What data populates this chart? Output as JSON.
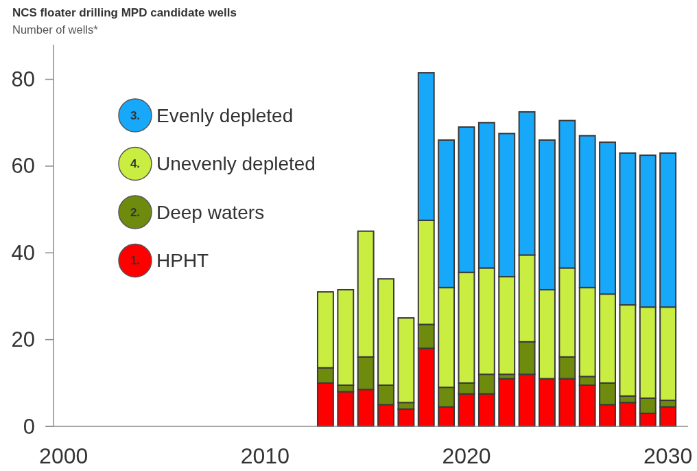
{
  "chart_data": {
    "type": "bar",
    "stacked": true,
    "title": "NCS floater drilling MPD candidate wells",
    "ylabel": "Number of wells*",
    "x": [
      2013,
      2014,
      2015,
      2016,
      2017,
      2018,
      2019,
      2020,
      2021,
      2022,
      2023,
      2024,
      2025,
      2026,
      2027,
      2028,
      2029,
      2030
    ],
    "xlim": [
      1999.5,
      2031
    ],
    "xticks": [
      2000,
      2010,
      2020,
      2030
    ],
    "ylim": [
      0,
      88
    ],
    "yticks": [
      0,
      20,
      40,
      60,
      80
    ],
    "legend": "top left",
    "annotations": [
      "1.",
      "2.",
      "4.",
      "3."
    ],
    "series": [
      {
        "name": "HPHT",
        "color": "#fe0000",
        "values": [
          10,
          8,
          8.5,
          5,
          4,
          18,
          4.5,
          7.5,
          7.5,
          11,
          12,
          11,
          11,
          9.5,
          5,
          5.5,
          3,
          4.5
        ]
      },
      {
        "name": "Deep waters",
        "color": "#6f8b0e",
        "values": [
          3.5,
          1.5,
          7.5,
          4.5,
          1.5,
          5.5,
          4.5,
          2.5,
          4.5,
          1,
          7.5,
          null,
          5,
          2,
          5,
          1.5,
          3.5,
          1.5
        ]
      },
      {
        "name": "Unevenly depleted",
        "color": "#c9ed41",
        "values": [
          17.5,
          22,
          29,
          24.5,
          19.5,
          24,
          23,
          25.5,
          24.5,
          22.5,
          20,
          20.5,
          20.5,
          20.5,
          20.5,
          21,
          21,
          21.5
        ]
      },
      {
        "name": "Evenly depleted",
        "color": "#18a8fa",
        "values": [
          null,
          null,
          null,
          null,
          null,
          34,
          34,
          33.5,
          33.5,
          33,
          33,
          34.5,
          34,
          35,
          35,
          35,
          35,
          35.5
        ]
      }
    ]
  }
}
